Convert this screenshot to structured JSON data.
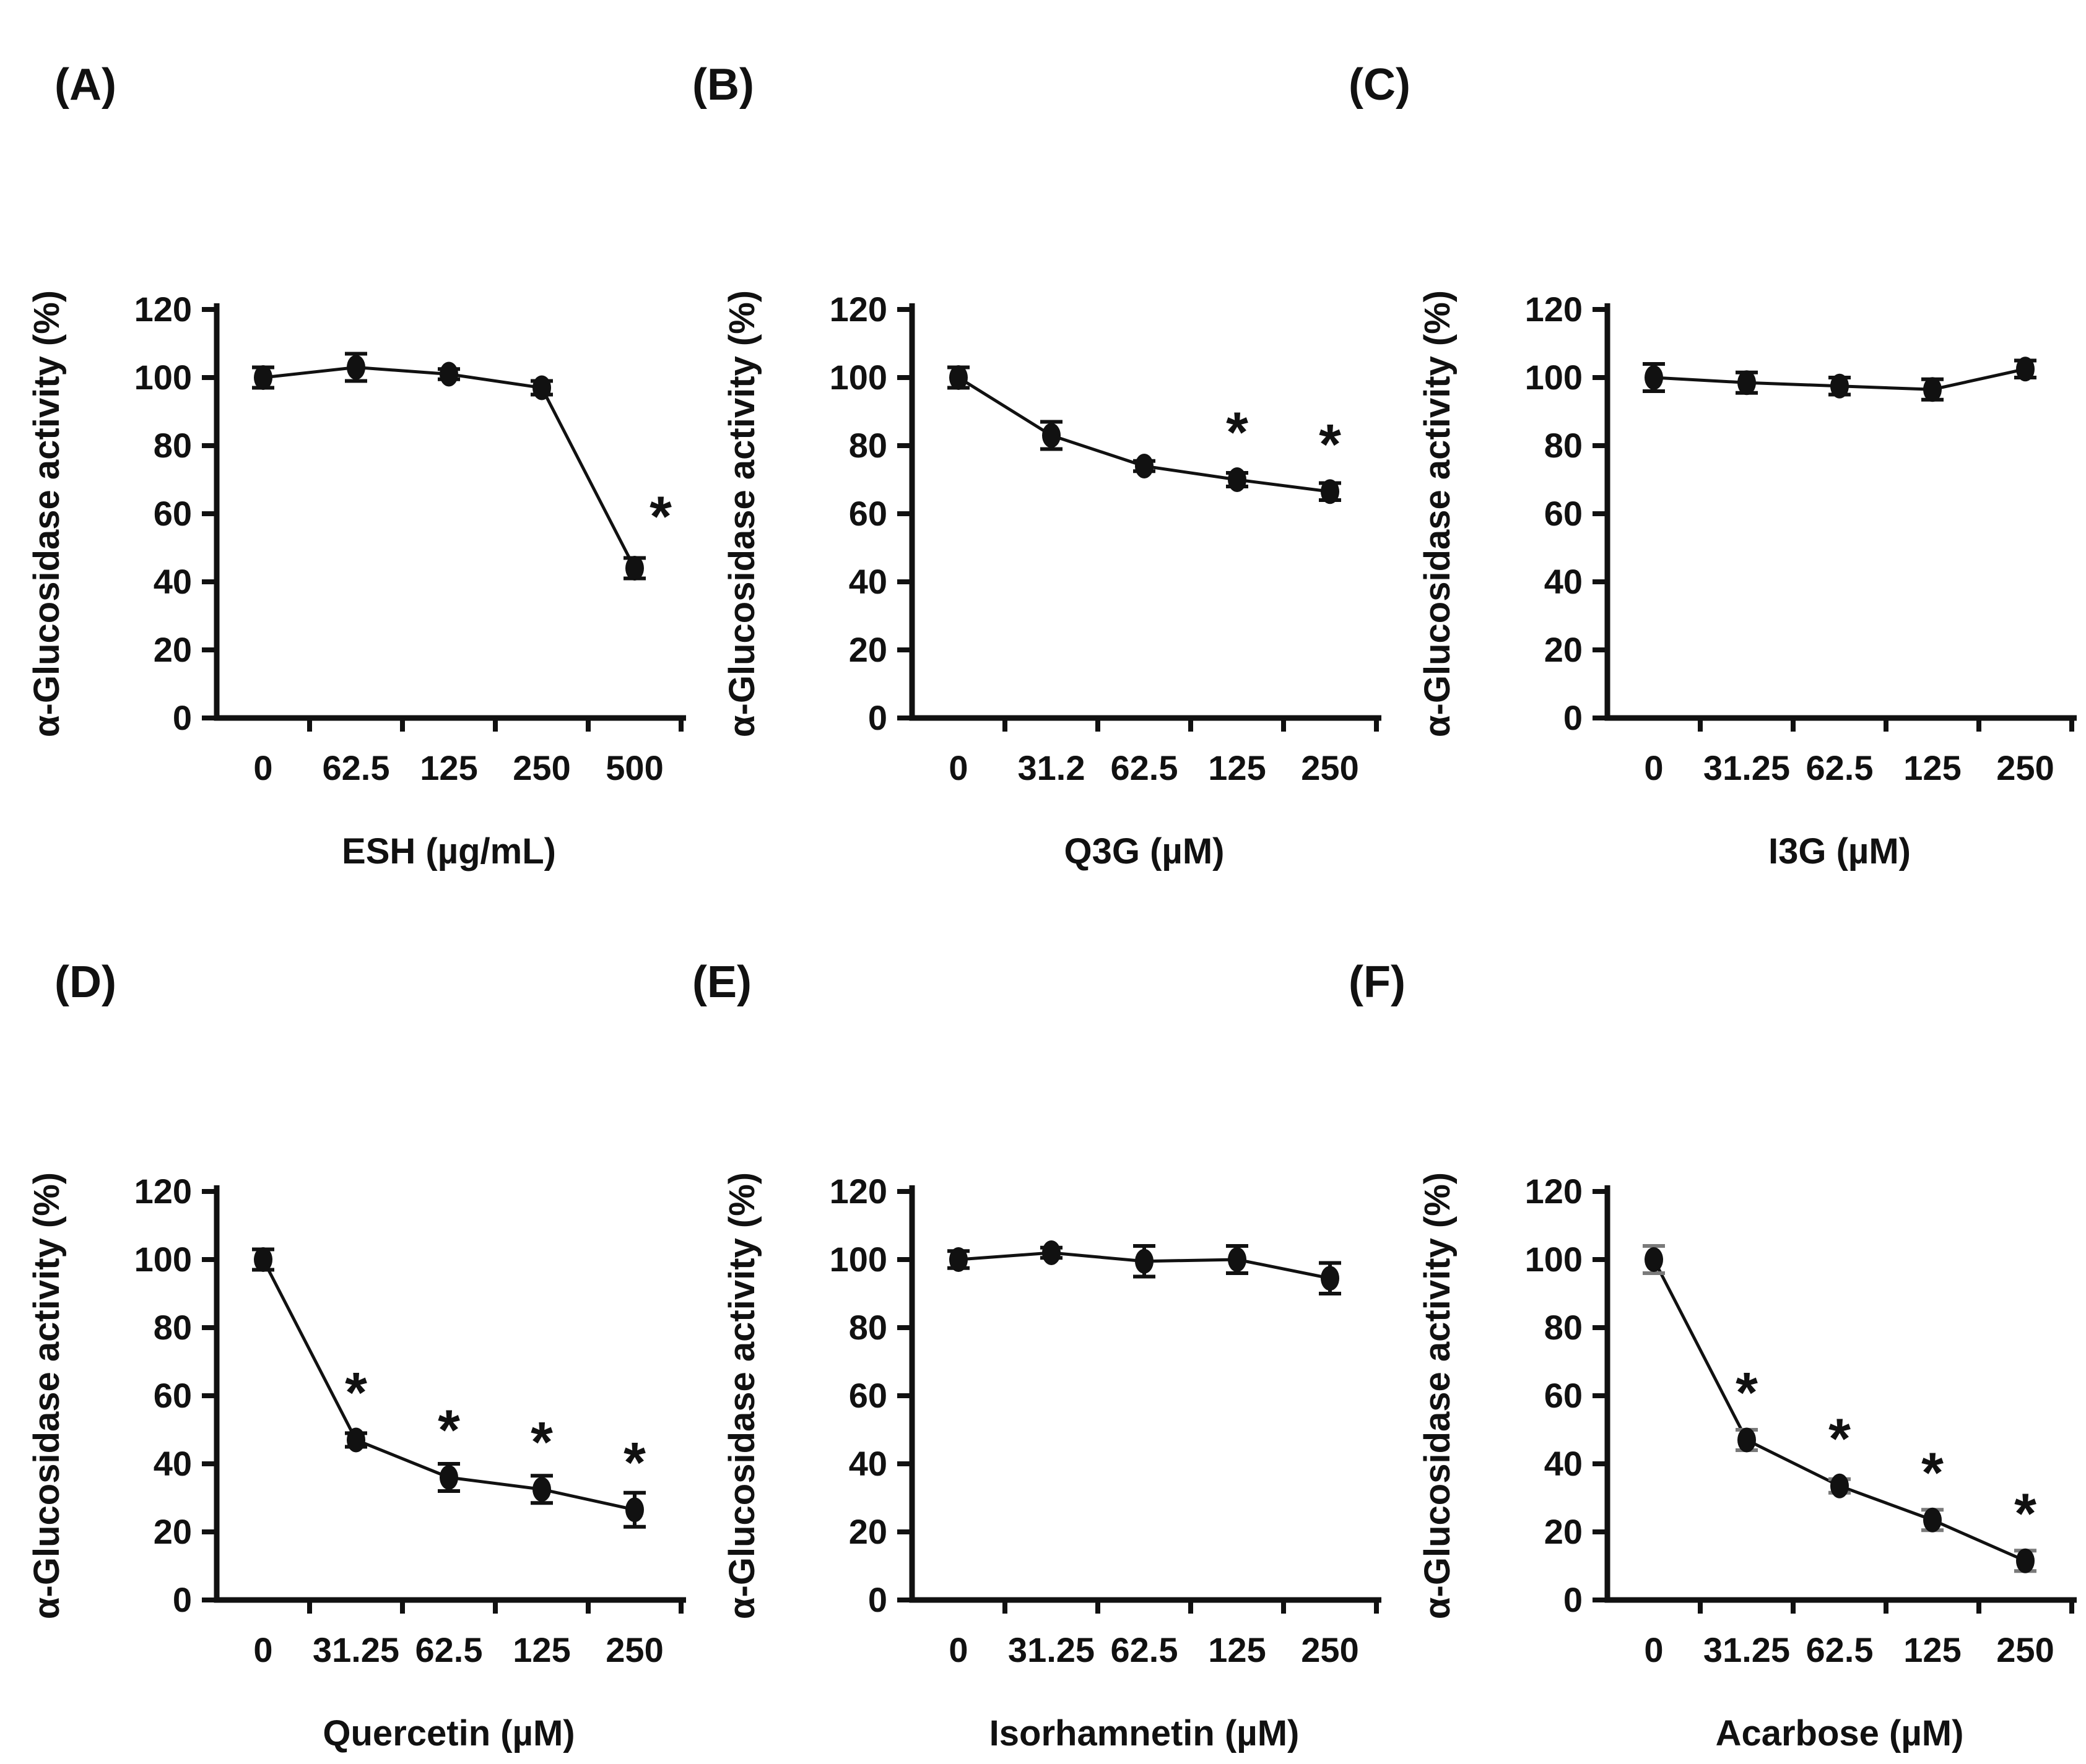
{
  "figure": {
    "background": "#ffffff",
    "ink_color": "#111111",
    "ylabel": "α-Glucosidase activity (%)",
    "sig_marker": "*"
  },
  "chart_data": [
    {
      "id": "A",
      "panel_label": "(A)",
      "type": "line",
      "xlabel": "ESH (µg/mL)",
      "ylabel": "α-Glucosidase activity (%)",
      "categories": [
        "0",
        "62.5",
        "125",
        "250",
        "500"
      ],
      "values": [
        100,
        103,
        101,
        97,
        44
      ],
      "errors": [
        3,
        4,
        1.5,
        2,
        3
      ],
      "significant": [
        false,
        false,
        false,
        false,
        true
      ],
      "sig_offset": [
        42,
        -52
      ],
      "ylim": [
        0,
        120
      ],
      "yticks": [
        0,
        20,
        40,
        60,
        80,
        100,
        120
      ],
      "grid": false,
      "legend": "none",
      "marker_color": "#111111",
      "error_color": "#111111"
    },
    {
      "id": "B",
      "panel_label": "(B)",
      "type": "line",
      "xlabel": "Q3G (µM)",
      "ylabel": "α-Glucosidase activity (%)",
      "categories": [
        "0",
        "31.2",
        "62.5",
        "125",
        "250"
      ],
      "values": [
        100,
        83,
        74,
        70,
        66.5
      ],
      "errors": [
        3,
        4,
        1.5,
        2,
        2.5
      ],
      "significant": [
        false,
        false,
        false,
        true,
        true
      ],
      "sig_offset": [
        0,
        -45
      ],
      "ylim": [
        0,
        120
      ],
      "yticks": [
        0,
        20,
        40,
        60,
        80,
        100,
        120
      ],
      "grid": false,
      "legend": "none",
      "marker_color": "#111111",
      "error_color": "#111111"
    },
    {
      "id": "C",
      "panel_label": "(C)",
      "type": "line",
      "xlabel": "I3G (µM)",
      "ylabel": "α-Glucosidase activity (%)",
      "categories": [
        "0",
        "31.25",
        "62.5",
        "125",
        "250"
      ],
      "values": [
        100,
        98.5,
        97.5,
        96.5,
        102.5
      ],
      "errors": [
        4,
        3,
        2.5,
        3,
        2.5
      ],
      "significant": [
        false,
        false,
        false,
        false,
        false
      ],
      "sig_offset": [
        0,
        -45
      ],
      "ylim": [
        0,
        120
      ],
      "yticks": [
        0,
        20,
        40,
        60,
        80,
        100,
        120
      ],
      "grid": false,
      "legend": "none",
      "marker_color": "#111111",
      "error_color": "#111111"
    },
    {
      "id": "D",
      "panel_label": "(D)",
      "type": "line",
      "xlabel": "Quercetin (µM)",
      "ylabel": "α-Glucosidase activity (%)",
      "categories": [
        "0",
        "31.25",
        "62.5",
        "125",
        "250"
      ],
      "values": [
        100,
        47,
        36,
        32.5,
        26.5
      ],
      "errors": [
        3,
        2,
        4,
        4,
        5
      ],
      "significant": [
        false,
        true,
        true,
        true,
        true
      ],
      "sig_offset": [
        0,
        -45
      ],
      "ylim": [
        0,
        120
      ],
      "yticks": [
        0,
        20,
        40,
        60,
        80,
        100,
        120
      ],
      "grid": false,
      "legend": "none",
      "marker_color": "#111111",
      "error_color": "#111111"
    },
    {
      "id": "E",
      "panel_label": "(E)",
      "type": "line",
      "xlabel": "Isorhamnetin (µM)",
      "ylabel": "α-Glucosidase activity (%)",
      "categories": [
        "0",
        "31.25",
        "62.5",
        "125",
        "250"
      ],
      "values": [
        100,
        102,
        99.5,
        100,
        94.5
      ],
      "errors": [
        2.5,
        1.5,
        4.5,
        4,
        4.5
      ],
      "significant": [
        false,
        false,
        false,
        false,
        false
      ],
      "sig_offset": [
        0,
        -45
      ],
      "ylim": [
        0,
        120
      ],
      "yticks": [
        0,
        20,
        40,
        60,
        80,
        100,
        120
      ],
      "grid": false,
      "legend": "none",
      "marker_color": "#111111",
      "error_color": "#111111"
    },
    {
      "id": "F",
      "panel_label": "(F)",
      "type": "line",
      "xlabel": "Acarbose (µM)",
      "ylabel": "α-Glucosidase activity (%)",
      "categories": [
        "0",
        "31.25",
        "62.5",
        "125",
        "250"
      ],
      "values": [
        100,
        47,
        33.5,
        23.5,
        11.5
      ],
      "errors": [
        4,
        3,
        2,
        3,
        3
      ],
      "significant": [
        false,
        true,
        true,
        true,
        true
      ],
      "sig_offset": [
        0,
        -45
      ],
      "ylim": [
        0,
        120
      ],
      "yticks": [
        0,
        20,
        40,
        60,
        80,
        100,
        120
      ],
      "grid": false,
      "legend": "none",
      "marker_color": "#111111",
      "error_color": "#7a7a7a"
    }
  ]
}
